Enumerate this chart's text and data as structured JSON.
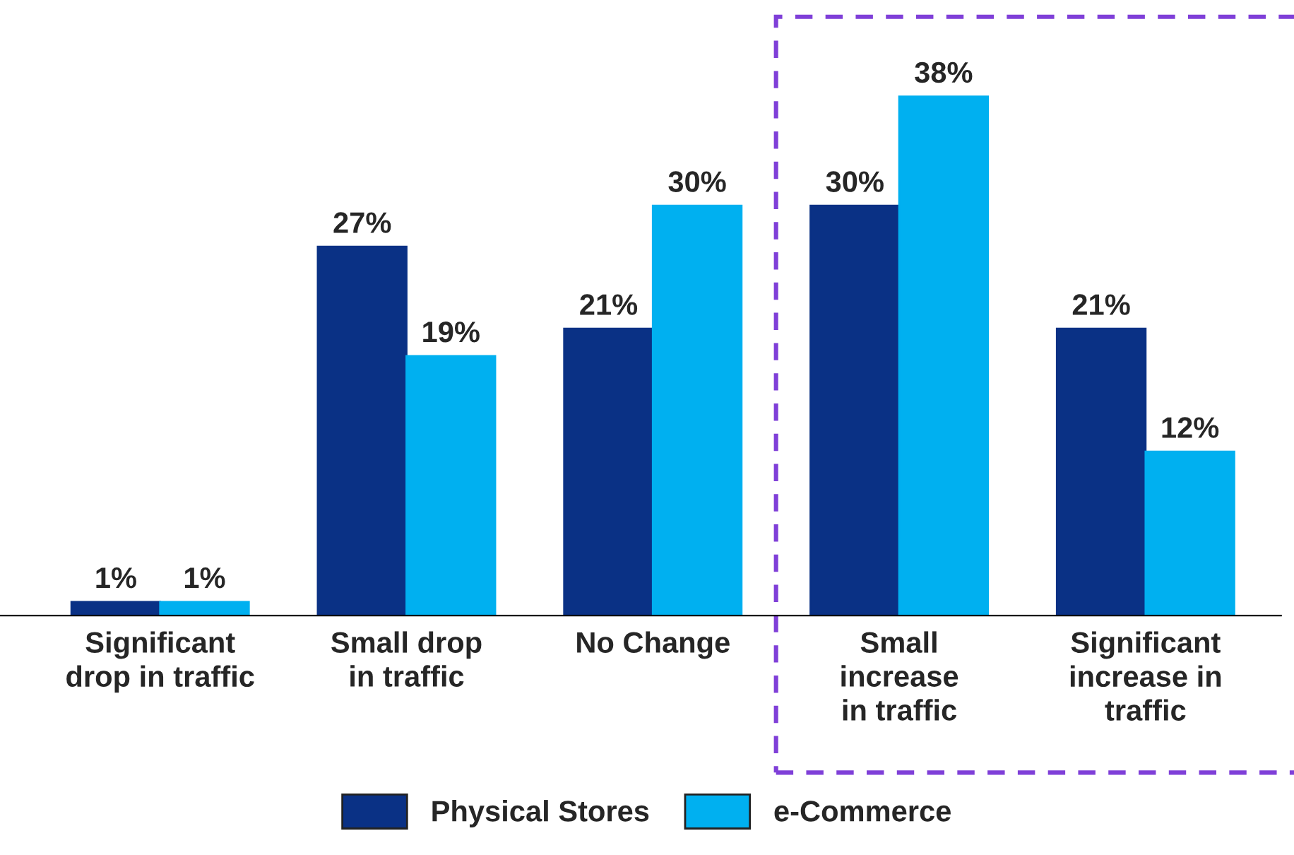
{
  "chart_data": {
    "type": "bar",
    "categories": [
      "Significant\ndrop in traffic",
      "Small drop\nin traffic",
      "No Change",
      "Small\nincrease\nin traffic",
      "Significant\nincrease in\ntraffic"
    ],
    "series": [
      {
        "name": "Physical Stores",
        "color": "#0a3185",
        "values": [
          1,
          27,
          21,
          30,
          21
        ],
        "value_labels": [
          "1%",
          "27%",
          "21%",
          "30%",
          "21%"
        ]
      },
      {
        "name": "e-Commerce",
        "color": "#00b0f0",
        "values": [
          1,
          19,
          30,
          38,
          12
        ],
        "value_labels": [
          "1%",
          "19%",
          "30%",
          "38%",
          "12%"
        ]
      }
    ],
    "legend": "bottom",
    "grid": false,
    "tick_labels": "x"
  }
}
